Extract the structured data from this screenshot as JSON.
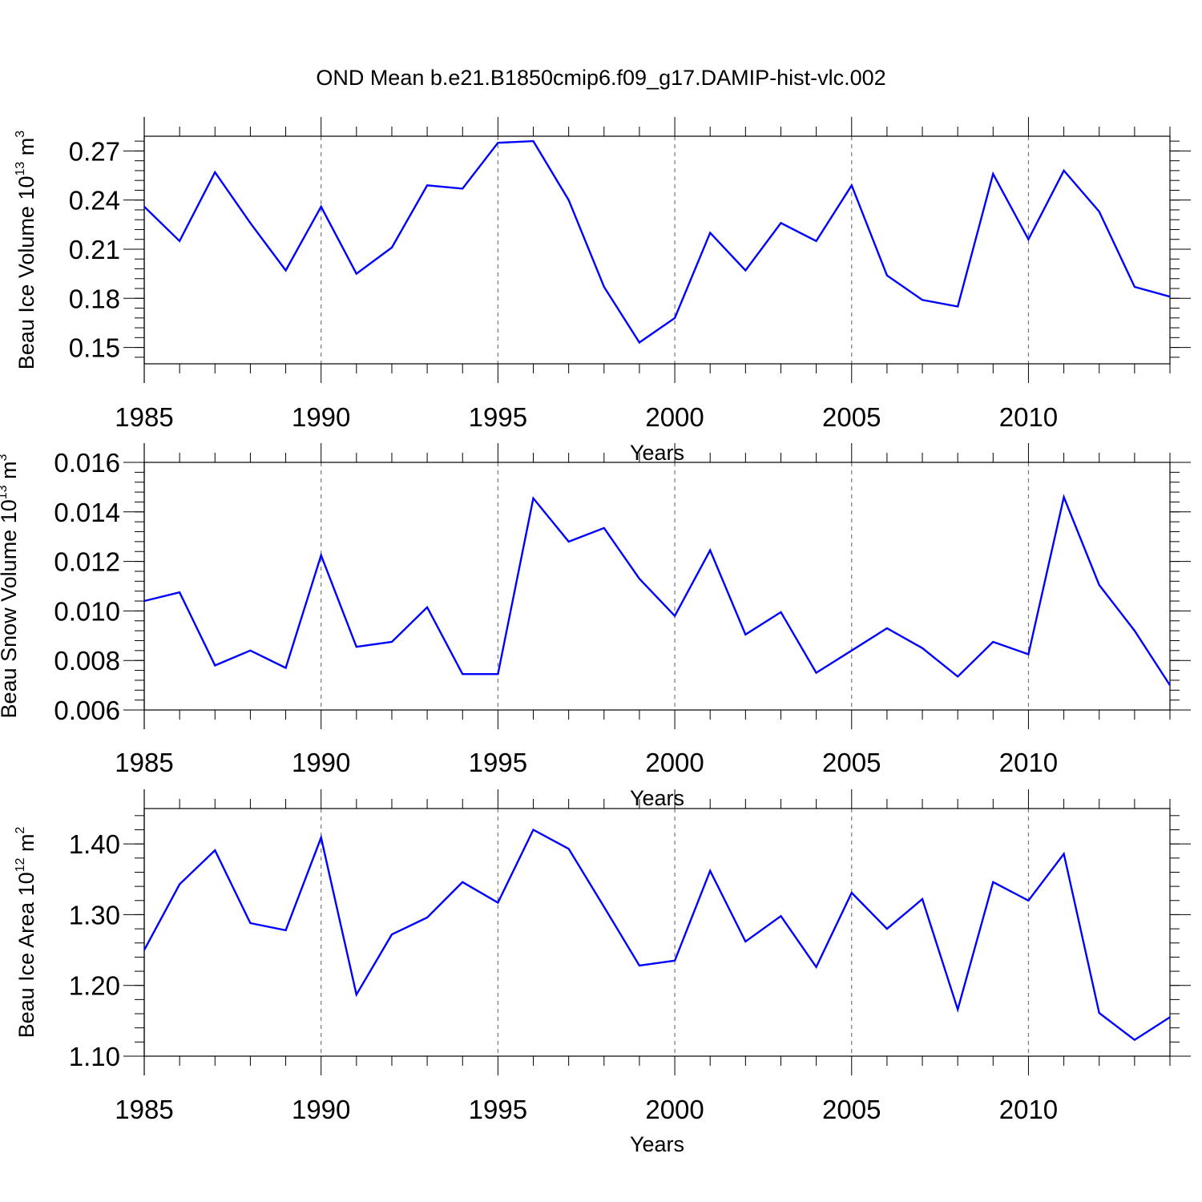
{
  "chart_data": {
    "title": "OND Mean b.e21.B1850cmip6.f09_g17.DAMIP-hist-vlc.002",
    "series_color": "#0000ff",
    "years": [
      1985,
      1986,
      1987,
      1988,
      1989,
      1990,
      1991,
      1992,
      1993,
      1994,
      1995,
      1996,
      1997,
      1998,
      1999,
      2000,
      2001,
      2002,
      2003,
      2004,
      2005,
      2006,
      2007,
      2008,
      2009,
      2010,
      2011,
      2012,
      2013,
      2014
    ],
    "panels": [
      {
        "type": "line",
        "ylabel": {
          "main": "Beau Ice Volume 10",
          "exp1": "13",
          "mid": " m",
          "exp2": "3"
        },
        "xlabel": "Years",
        "ylim": [
          0.14,
          0.279
        ],
        "yticks": [
          0.15,
          0.18,
          0.21,
          0.24,
          0.27
        ],
        "ytick_labels": [
          "0.15",
          "0.18",
          "0.21",
          "0.24",
          "0.27"
        ],
        "minor_step": 0.006,
        "values": [
          0.236,
          0.215,
          0.257,
          0.226,
          0.197,
          0.236,
          0.195,
          0.211,
          0.249,
          0.247,
          0.275,
          0.276,
          0.24,
          0.187,
          0.153,
          0.168,
          0.22,
          0.197,
          0.226,
          0.215,
          0.249,
          0.194,
          0.179,
          0.175,
          0.256,
          0.216,
          0.258,
          0.233,
          0.187,
          0.181
        ]
      },
      {
        "type": "line",
        "ylabel": {
          "main": "Beau Snow Volume 10",
          "exp1": "13",
          "mid": " m",
          "exp2": "3"
        },
        "xlabel": "Years",
        "ylim": [
          0.006,
          0.016
        ],
        "yticks": [
          0.006,
          0.008,
          0.01,
          0.012,
          0.014,
          0.016
        ],
        "ytick_labels": [
          "0.006",
          "0.008",
          "0.010",
          "0.012",
          "0.014",
          "0.016"
        ],
        "minor_step": 0.0004,
        "values": [
          0.0104,
          0.01075,
          0.0078,
          0.0084,
          0.0077,
          0.01225,
          0.00855,
          0.00875,
          0.01015,
          0.00745,
          0.00745,
          0.01455,
          0.0128,
          0.01335,
          0.0113,
          0.0098,
          0.01245,
          0.00905,
          0.00995,
          0.0075,
          0.0084,
          0.0093,
          0.0085,
          0.00735,
          0.00875,
          0.00825,
          0.0146,
          0.01105,
          0.0092,
          0.007
        ]
      },
      {
        "type": "line",
        "ylabel": {
          "main": "Beau Ice Area 10",
          "exp1": "12",
          "mid": " m",
          "exp2": "2"
        },
        "xlabel": "Years",
        "ylim": [
          1.1,
          1.45
        ],
        "yticks": [
          1.1,
          1.2,
          1.3,
          1.4
        ],
        "ytick_labels": [
          "1.10",
          "1.20",
          "1.30",
          "1.40"
        ],
        "minor_step": 0.02,
        "values": [
          1.25,
          1.343,
          1.391,
          1.288,
          1.278,
          1.409,
          1.187,
          1.272,
          1.296,
          1.346,
          1.317,
          1.42,
          1.393,
          1.311,
          1.228,
          1.235,
          1.362,
          1.262,
          1.298,
          1.226,
          1.331,
          1.28,
          1.322,
          1.166,
          1.346,
          1.32,
          1.386,
          1.161,
          1.123,
          1.155
        ]
      }
    ],
    "xticks": [
      1985,
      1990,
      1995,
      2000,
      2005,
      2010
    ],
    "xtick_labels": [
      "1985",
      "1990",
      "1995",
      "2000",
      "2005",
      "2010"
    ],
    "grid": "vertical dashed at major x ticks"
  }
}
